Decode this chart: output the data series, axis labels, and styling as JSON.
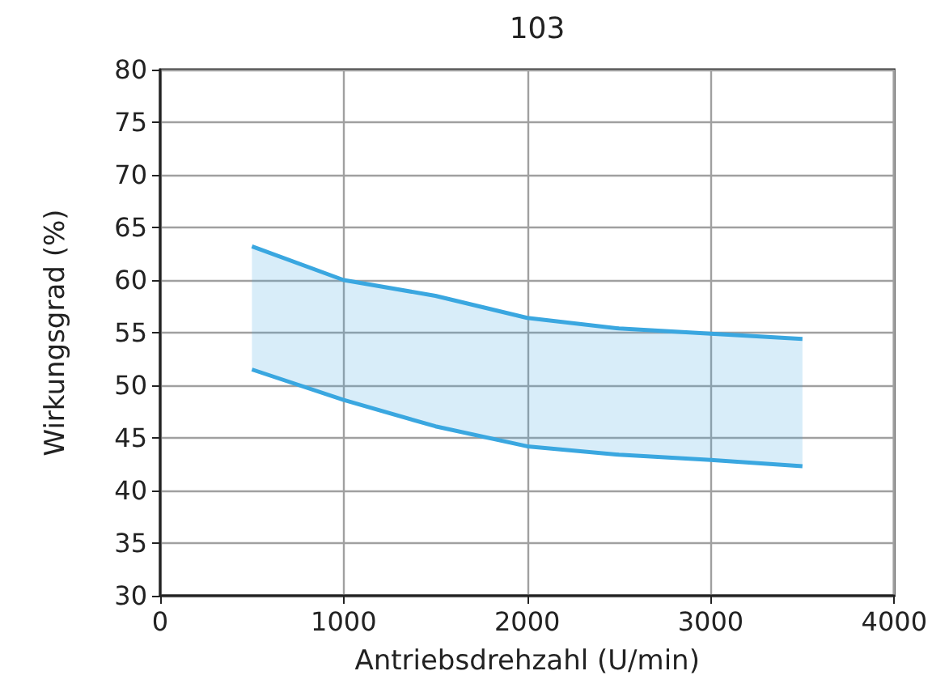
{
  "chart_data": {
    "type": "line",
    "title": "103",
    "xlabel": "Antriebsdrehzahl (U/min)",
    "ylabel": "Wirkungsgrad (%)",
    "x": [
      500,
      1000,
      1500,
      2000,
      2500,
      3000,
      3500
    ],
    "series": [
      {
        "color": "#3aa7e0",
        "values": [
          63.2,
          60,
          58.5,
          56.4,
          55.4,
          54.9,
          54.4
        ]
      },
      {
        "color": "#3aa7e0",
        "values": [
          51.5,
          48.6,
          46.1,
          44.2,
          43.4,
          42.9,
          42.3
        ],
        "lower": [
          51.5,
          48.6,
          46.1,
          44.2,
          43.4,
          42.9,
          42.3
        ],
        "upper": [
          63.2,
          60,
          58.5,
          56.4,
          55.4,
          54.9,
          54.4
        ]
      }
    ],
    "xlim": [
      0,
      4000
    ],
    "xticks": [
      0,
      1000,
      2000,
      3000,
      4000
    ],
    "ylim": [
      30,
      80
    ],
    "yticks": [
      30,
      35,
      40,
      45,
      50,
      55,
      60,
      65,
      70,
      75,
      80
    ],
    "grid": true,
    "marker": "none",
    "line_style": "solid"
  }
}
